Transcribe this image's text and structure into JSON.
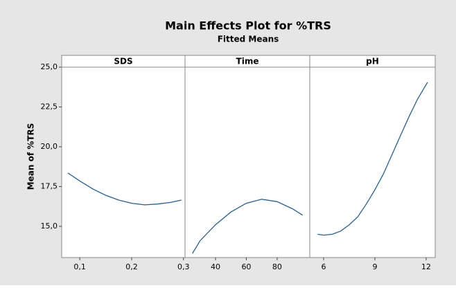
{
  "chart_data": {
    "type": "line",
    "title": "Main Effects Plot for %TRS",
    "subtitle": "Fitted Means",
    "y_label": "Mean of %TRS",
    "ylim": [
      13.04,
      25.0
    ],
    "yticks": [
      {
        "value": 15,
        "label": "15,0"
      },
      {
        "value": 17.5,
        "label": "17,5"
      },
      {
        "value": 20,
        "label": "20,0"
      },
      {
        "value": 22.5,
        "label": "22,5"
      },
      {
        "value": 25,
        "label": "25,0"
      }
    ],
    "color": "#1f5fa6",
    "panels": [
      {
        "name": "SDS",
        "xlim": [
          0.065,
          0.303
        ],
        "xticks": [
          {
            "value": 0.1,
            "label": "0,1"
          },
          {
            "value": 0.2,
            "label": "0,2"
          },
          {
            "value": 0.3,
            "label": "0,3"
          }
        ],
        "x": [
          0.077,
          0.1,
          0.125,
          0.15,
          0.175,
          0.2,
          0.225,
          0.25,
          0.275,
          0.296
        ],
        "values": [
          18.35,
          17.85,
          17.35,
          16.95,
          16.65,
          16.45,
          16.35,
          16.4,
          16.5,
          16.65
        ]
      },
      {
        "name": "Time",
        "xlim": [
          20.2,
          101.2
        ],
        "xticks": [
          40,
          60,
          80
        ],
        "x": [
          25,
          30,
          40,
          50,
          60,
          70,
          80,
          90,
          96.5
        ],
        "values": [
          13.3,
          14.1,
          15.1,
          15.9,
          16.45,
          16.7,
          16.55,
          16.1,
          15.7
        ]
      },
      {
        "name": "pH",
        "xlim": [
          5.19,
          12.53
        ],
        "xticks": [
          6,
          9,
          12
        ],
        "x": [
          5.65,
          6,
          6.5,
          7,
          7.5,
          8,
          8.5,
          9,
          9.5,
          10,
          10.5,
          11,
          11.5,
          12.08
        ],
        "values": [
          14.5,
          14.45,
          14.5,
          14.7,
          15.1,
          15.6,
          16.4,
          17.3,
          18.3,
          19.5,
          20.7,
          21.9,
          23.0,
          24.05
        ]
      }
    ]
  }
}
